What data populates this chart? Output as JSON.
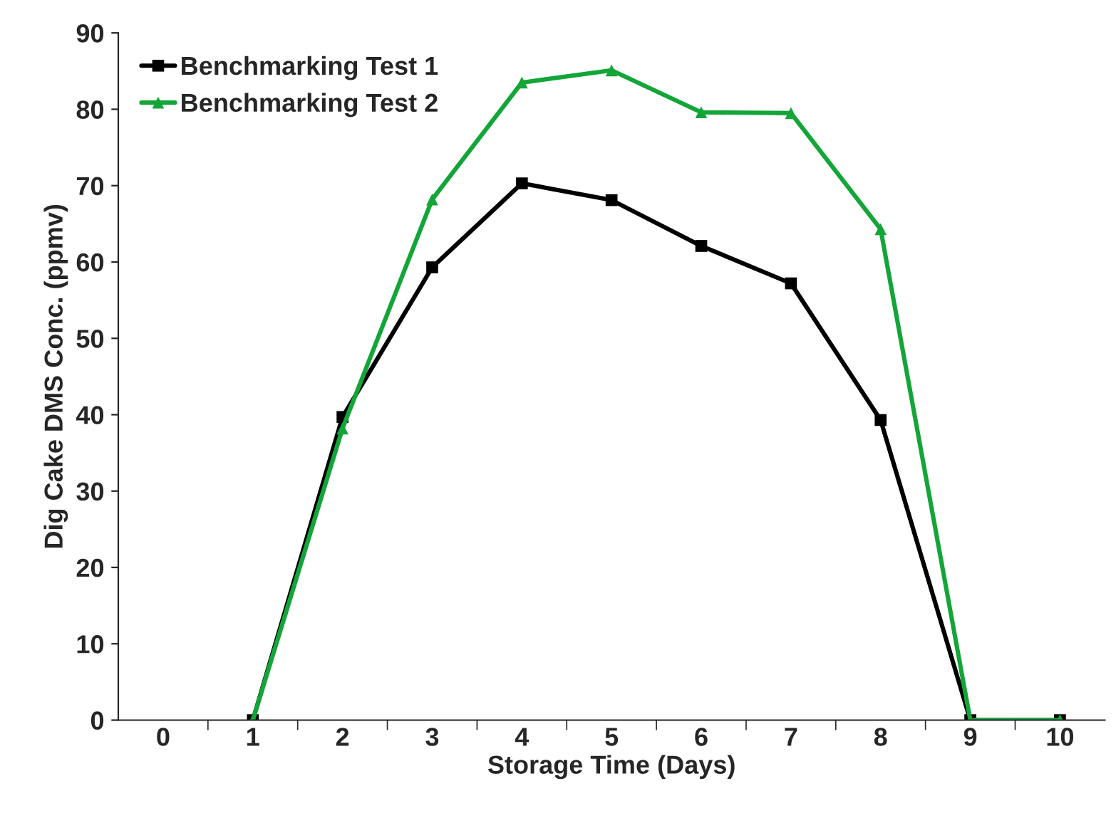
{
  "chart_data": {
    "type": "line",
    "xlabel": "Storage Time (Days)",
    "ylabel": "Dig Cake DMS Conc. (ppmv)",
    "categories": [
      "0",
      "1",
      "2",
      "3",
      "4",
      "5",
      "6",
      "7",
      "8",
      "9",
      "10"
    ],
    "series": [
      {
        "name": "Benchmarking Test 1",
        "color": "#000000",
        "marker": "square",
        "values": [
          null,
          0,
          39.7,
          59.3,
          70.3,
          68.1,
          62.1,
          57.2,
          39.3,
          0,
          0
        ]
      },
      {
        "name": "Benchmarking Test 2",
        "color": "#13a538",
        "marker": "triangle",
        "values": [
          null,
          0,
          38.2,
          68.2,
          83.5,
          85.1,
          79.6,
          79.5,
          64.3,
          0,
          0
        ]
      }
    ],
    "ylim": [
      0,
      90
    ],
    "yticks": [
      0,
      10,
      20,
      30,
      40,
      50,
      60,
      70,
      80,
      90
    ],
    "grid": false,
    "legend": "top left"
  }
}
